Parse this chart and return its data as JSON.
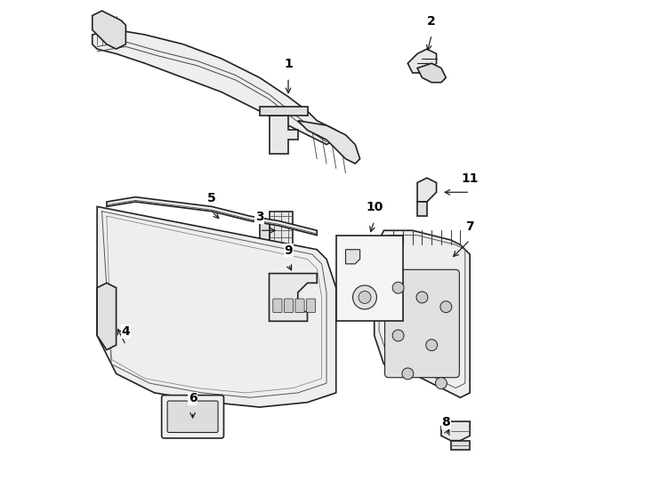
{
  "bg_color": "#ffffff",
  "line_color": "#222222",
  "label_color": "#000000",
  "figsize": [
    7.34,
    5.4
  ],
  "dpi": 100
}
